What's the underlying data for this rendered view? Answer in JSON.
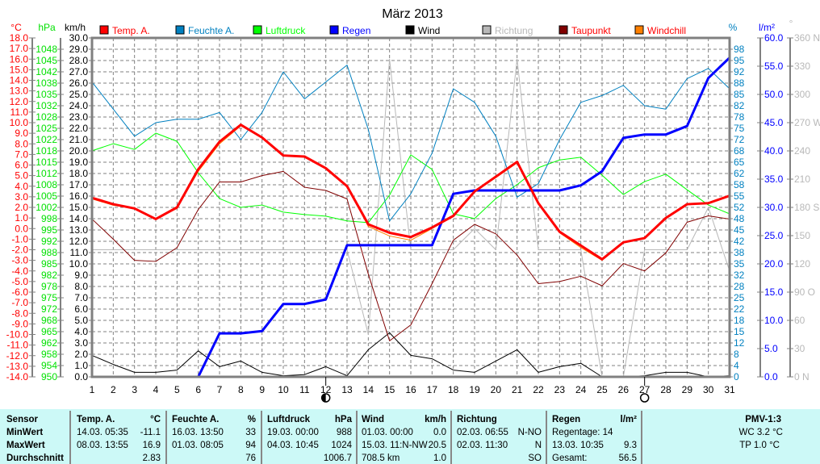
{
  "chart_data": {
    "type": "line",
    "title": "März 2013",
    "x": [
      1,
      2,
      3,
      4,
      5,
      6,
      7,
      8,
      9,
      10,
      11,
      12,
      13,
      14,
      15,
      16,
      17,
      18,
      19,
      20,
      21,
      22,
      23,
      24,
      25,
      26,
      27,
      28,
      29,
      30,
      31
    ],
    "legend_placement": "top",
    "grid": true,
    "axes": {
      "temp": {
        "label": "°C",
        "range": [
          -14,
          18
        ],
        "color": "#ff0000",
        "ticks": [
          18,
          17,
          16,
          15,
          14,
          13,
          12,
          11,
          10,
          9,
          8,
          7,
          6,
          5,
          4,
          3,
          2,
          1,
          0,
          -1,
          -2,
          -3,
          -4,
          -5,
          -6,
          -7,
          -8,
          -9,
          -10,
          -11,
          -12,
          -13,
          -14
        ]
      },
      "pressure": {
        "label": "hPa",
        "range": [
          950,
          1050
        ],
        "color": "#00e000",
        "tick_labels": [
          "950",
          "954",
          "958",
          "962",
          "965",
          "968",
          "972",
          "975",
          "978",
          "982",
          "985",
          "988",
          "992",
          "995",
          "998",
          "1002",
          "1005",
          "1008",
          "1012",
          "1015",
          "1018",
          "1022",
          "1025",
          "1028",
          "1032",
          "1035",
          "1038",
          "1042",
          "1045",
          "1048"
        ]
      },
      "wind": {
        "label": "km/h",
        "range": [
          0,
          30
        ],
        "color": "#000000"
      },
      "humidity": {
        "label": "%",
        "range": [
          0,
          100
        ],
        "color": "#0080c0",
        "tick_labels": [
          "0",
          "4",
          "8",
          "12",
          "15",
          "18",
          "22",
          "25",
          "28",
          "32",
          "35",
          "38",
          "42",
          "45",
          "48",
          "52",
          "55",
          "58",
          "62",
          "65",
          "68",
          "72",
          "75",
          "78",
          "82",
          "85",
          "88",
          "92",
          "95",
          "98"
        ]
      },
      "rain": {
        "label": "l/m²",
        "range": [
          0,
          60
        ],
        "color": "#0000ff",
        "ticks": [
          0,
          5,
          10,
          15,
          20,
          25,
          30,
          35,
          40,
          45,
          50,
          55,
          60
        ]
      },
      "direction": {
        "label": "°",
        "range": [
          0,
          360
        ],
        "color": "#b8b8b8",
        "tick_labels": [
          "0 N",
          "30",
          "60",
          "90 O",
          "120",
          "150",
          "180 S",
          "210",
          "240",
          "270 W",
          "300",
          "330",
          "360 N"
        ]
      }
    },
    "series": [
      {
        "name": "Temp. A.",
        "axis": "temp",
        "color": "#ff0000",
        "width": 3,
        "values": [
          2.9,
          2.3,
          1.9,
          0.9,
          2.0,
          5.6,
          8.2,
          9.8,
          8.6,
          6.9,
          6.8,
          5.7,
          4.0,
          0.4,
          -0.4,
          -0.8,
          0.1,
          1.2,
          3.5,
          4.9,
          6.3,
          2.4,
          -0.3,
          -1.6,
          -2.9,
          -1.3,
          -0.9,
          1.0,
          2.3,
          2.4,
          3.1
        ]
      },
      {
        "name": "Feuchte A.",
        "axis": "humidity",
        "color": "#0080c0",
        "width": 1,
        "values": [
          87,
          79,
          71,
          75,
          76,
          76,
          78,
          70,
          78,
          90,
          82,
          87,
          92,
          73,
          46,
          54,
          66,
          85,
          81,
          71,
          53,
          57,
          70,
          81,
          83,
          86,
          80,
          79,
          88,
          91,
          85
        ]
      },
      {
        "name": "Luftdruck",
        "axis": "pressure",
        "color": "#00ff00",
        "width": 1,
        "values": [
          1016.7,
          1018.8,
          1017.1,
          1021.9,
          1019.5,
          1010.2,
          1002.6,
          1000.0,
          1000.7,
          998.6,
          997.9,
          997.4,
          996.0,
          995.5,
          1003.6,
          1015.5,
          1011.2,
          998.1,
          996.7,
          1002.6,
          1006.7,
          1011.7,
          1014.0,
          1014.8,
          1009.5,
          1003.8,
          1007.6,
          1009.8,
          1005.2,
          1000.7,
          998.1
        ]
      },
      {
        "name": "Regen",
        "axis": "rain",
        "color": "#0000ff",
        "width": 3,
        "values": [
          0,
          0,
          0,
          0,
          0,
          0,
          7.7,
          7.7,
          8.1,
          12.9,
          12.9,
          13.7,
          23.3,
          23.3,
          23.3,
          23.3,
          23.3,
          32.4,
          33.0,
          33.0,
          33.0,
          33.0,
          33.0,
          33.9,
          36.4,
          42.3,
          42.9,
          42.9,
          44.4,
          52.9,
          56.5
        ]
      },
      {
        "name": "Wind",
        "axis": "wind",
        "color": "#000000",
        "width": 1,
        "values": [
          1.9,
          1.1,
          0.4,
          0.4,
          0.6,
          2.3,
          0.9,
          1.4,
          0.4,
          0.1,
          0.2,
          0.9,
          0.1,
          2.4,
          3.9,
          1.9,
          1.6,
          0.6,
          0.4,
          1.4,
          2.4,
          0.4,
          0.9,
          1.2,
          0,
          0,
          0.1,
          0.4,
          0.4,
          0,
          0.1
        ]
      },
      {
        "name": "Richtung",
        "axis": "direction",
        "color": "#b8b8b8",
        "width": 1,
        "values": [
          135,
          135,
          135,
          135,
          135,
          135,
          135,
          135,
          135,
          135,
          135,
          135,
          135,
          45,
          337.5,
          135,
          135,
          135,
          157.5,
          135,
          337.5,
          135,
          135,
          135,
          0,
          0,
          135,
          135,
          135,
          180,
          112.5
        ]
      },
      {
        "name": "Taupunkt",
        "axis": "temp",
        "color": "#800000",
        "width": 1,
        "values": [
          0.9,
          -1.0,
          -3.0,
          -3.1,
          -1.8,
          1.8,
          4.4,
          4.4,
          5.0,
          5.4,
          3.9,
          3.6,
          2.8,
          -4.3,
          -10.6,
          -9.1,
          -5.2,
          -1.1,
          0.4,
          -0.5,
          -2.5,
          -5.2,
          -5.0,
          -4.5,
          -5.4,
          -3.3,
          -4.0,
          -2.3,
          0.6,
          1.2,
          0.9
        ]
      },
      {
        "name": "Windchill",
        "axis": "temp",
        "color": "#ff8000",
        "width": 1,
        "values": [
          2.8,
          2.2,
          1.9,
          0.9,
          1.9,
          5.4,
          8.0,
          9.7,
          8.6,
          6.9,
          6.8,
          5.7,
          4.0,
          0.2,
          -0.7,
          -1.1,
          0.0,
          1.2,
          3.5,
          4.8,
          6.2,
          2.4,
          -0.4,
          -1.8,
          -3.0,
          -1.3,
          -0.9,
          1.0,
          2.3,
          2.4,
          3.1
        ]
      }
    ],
    "moon_phases": [
      {
        "day": 12,
        "phase": "half-moon"
      },
      {
        "day": 27,
        "phase": "full-moon"
      }
    ]
  },
  "table": {
    "headers": {
      "sensor": "Sensor",
      "temp": "Temp. A.",
      "temp_unit": "°C",
      "hum": "Feuchte A.",
      "hum_unit": "%",
      "press": "Luftdruck",
      "press_unit": "hPa",
      "wind": "Wind",
      "wind_unit": "km/h",
      "dir": "Richtung",
      "rain": "Regen",
      "rain_unit": "l/m²",
      "pmv": "PMV-1:3"
    },
    "rows": {
      "min": "MinWert",
      "max": "MaxWert",
      "avg": "Durchschnitt"
    },
    "temp": {
      "min_time": "14.03.  05:35",
      "min": "-11.1",
      "max_time": "08.03.  13:55",
      "max": "16.9",
      "avg": "2.83"
    },
    "hum": {
      "min_time": "16.03.  13:50",
      "min": "33",
      "max_time": "01.03.  08:05",
      "max": "94",
      "avg": "76"
    },
    "press": {
      "min_time": "19.03.  00:00",
      "min": "988",
      "max_time": "04.03.  10:45",
      "max": "1024",
      "avg": "1006.7"
    },
    "wind": {
      "min_time": "01.03.  00:00",
      "min": "0.0",
      "max_time": "15.03.  11:N-NW",
      "max": "20.5",
      "avg_dist": "708.5 km",
      "avg": "1.0"
    },
    "dir": {
      "min_time": "02.03.  06:55",
      "min": "N-NO",
      "max_time": "02.03.  11:30",
      "max": "N",
      "avg": "SO"
    },
    "rain": {
      "days": "Regentage: 14",
      "max_time": "13.03.  10:35",
      "max": "9.3",
      "total_label": "Gesamt:",
      "total": "56.5"
    },
    "pmv": {
      "wc": "WC 3.2 °C",
      "tp": "TP 1.0 °C"
    }
  }
}
